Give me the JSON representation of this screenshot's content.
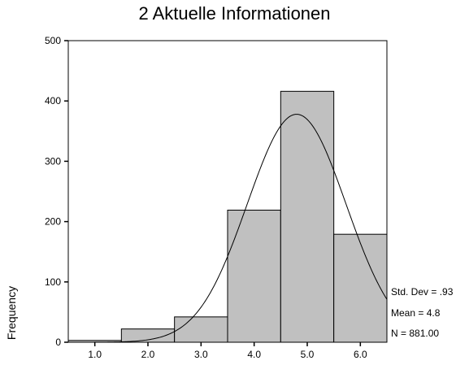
{
  "chart_data": {
    "type": "bar",
    "title": "2 Aktuelle Informationen",
    "xlabel": "",
    "ylabel": "Frequency",
    "categories": [
      "1.0",
      "2.0",
      "3.0",
      "4.0",
      "5.0",
      "6.0"
    ],
    "x": [
      1.0,
      2.0,
      3.0,
      4.0,
      5.0,
      6.0
    ],
    "values": [
      3,
      22,
      42,
      219,
      416,
      179
    ],
    "xlim": [
      0.5,
      6.5
    ],
    "ylim": [
      0,
      500
    ],
    "yticks": [
      0,
      100,
      200,
      300,
      400,
      500
    ],
    "bar_color": "#c0c0c0",
    "grid": false,
    "normal_curve": {
      "mean": 4.8,
      "std_dev": 0.93,
      "n": 881.0
    },
    "annotations": [
      "Std. Dev = .93",
      "Mean = 4.8",
      "N = 881.00"
    ]
  }
}
